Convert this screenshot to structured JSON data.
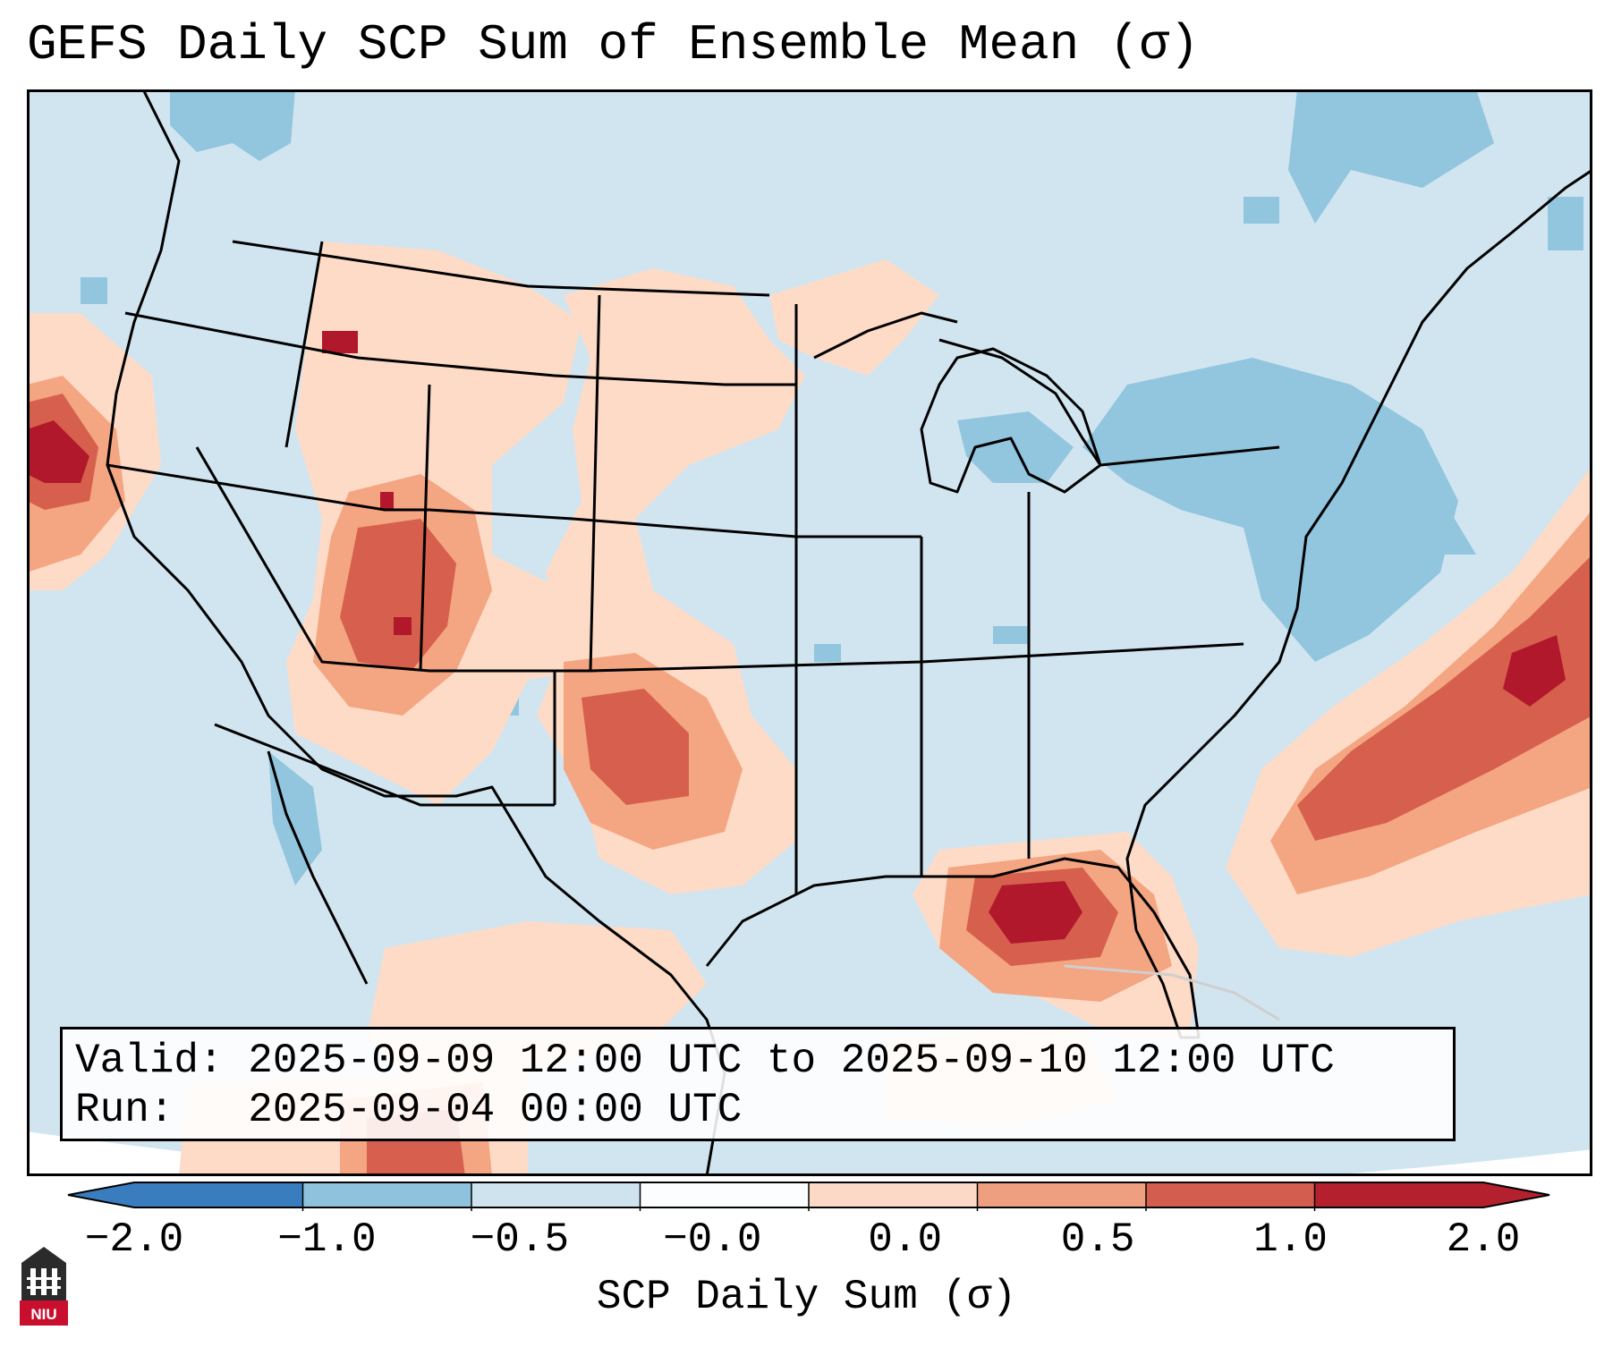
{
  "title": "GEFS Daily SCP Sum of Ensemble Mean (σ)",
  "info": {
    "valid_line": "Valid: 2025-09-09 12:00 UTC to 2025-09-10 12:00 UTC",
    "run_line": "Run:   2025-09-04 00:00 UTC"
  },
  "colorbar": {
    "title": "SCP Daily Sum (σ)",
    "ticks": [
      "−2.0",
      "−1.0",
      "−0.5",
      "−0.0",
      "0.0",
      "0.5",
      "1.0",
      "2.0"
    ],
    "colors": [
      "#3a7dbf",
      "#8ec2dd",
      "#cfe3ef",
      "#fbfdfe",
      "#fbd9c6",
      "#ee9f80",
      "#d35e4f",
      "#b5202f"
    ]
  },
  "logo": {
    "text": "NIU"
  },
  "colors": {
    "background_field": "#d1e5f0",
    "blue_light": "#92c5de",
    "orange_light": "#fddbc7",
    "orange_mid": "#f4a582",
    "red_mid": "#d6604d",
    "red_dark": "#b2182b"
  }
}
